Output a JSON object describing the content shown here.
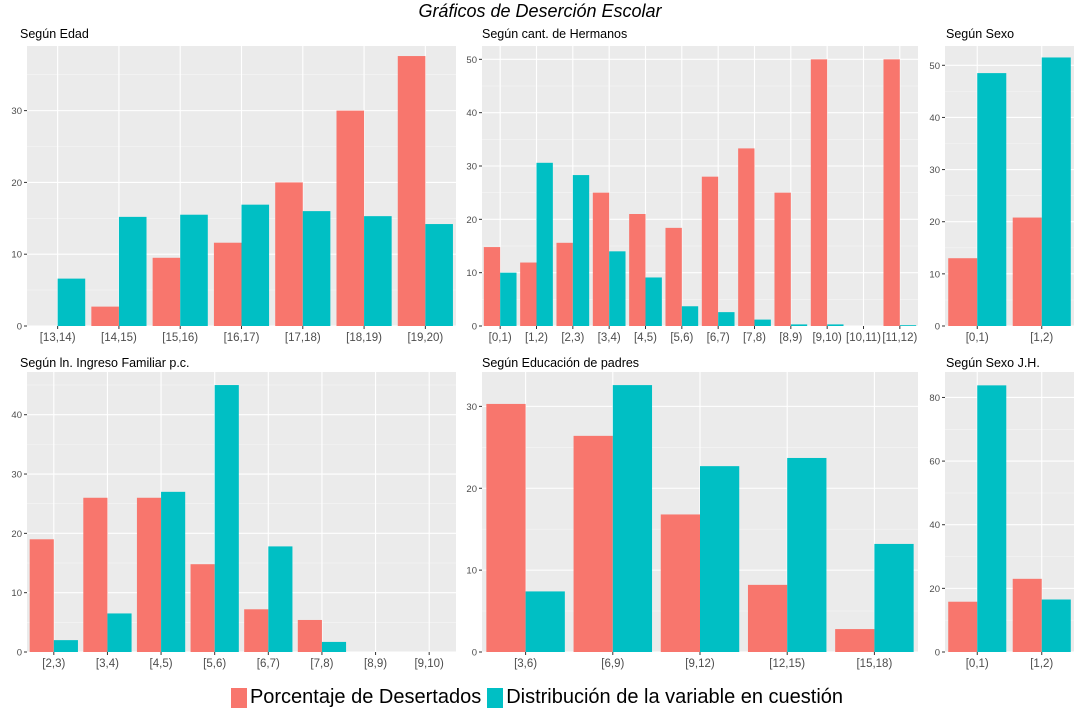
{
  "title": "Gráficos de Deserción Escolar",
  "colors": {
    "desertados": "#F8766D",
    "distribucion": "#00BFC4"
  },
  "legend": [
    {
      "label": "Porcentaje de Desertados",
      "color": "#F8766D"
    },
    {
      "label": "Distribución de la variable en cuestión",
      "color": "#00BFC4"
    }
  ],
  "chart_data": [
    {
      "type": "bar",
      "title": "Según  Edad",
      "categories": [
        "[13,14)",
        "[14,15)",
        "[15,16)",
        "[16,17)",
        "[17,18)",
        "[18,19)",
        "[19,20)"
      ],
      "series": [
        {
          "name": "Porcentaje de Desertados",
          "values": [
            0,
            2.7,
            9.5,
            11.6,
            20.0,
            30.0,
            37.6
          ]
        },
        {
          "name": "Distribución de la variable en cuestión",
          "values": [
            6.6,
            15.2,
            15.5,
            16.9,
            16.0,
            15.3,
            14.2
          ]
        }
      ],
      "ylim": [
        0,
        39
      ],
      "yticks": [
        0,
        10,
        20,
        30
      ]
    },
    {
      "type": "bar",
      "title": "Según  cant. de Hermanos",
      "categories": [
        "[0,1)",
        "[1,2)",
        "[2,3)",
        "[3,4)",
        "[4,5)",
        "[5,6)",
        "[6,7)",
        "[7,8)",
        "[8,9)",
        "[9,10)",
        "[10,11)",
        "[11,12)"
      ],
      "series": [
        {
          "name": "Porcentaje de Desertados",
          "values": [
            14.8,
            11.9,
            15.6,
            25.0,
            21.0,
            18.4,
            28.0,
            33.3,
            25.0,
            50.0,
            0,
            50.0
          ]
        },
        {
          "name": "Distribución de la variable en cuestión",
          "values": [
            10.0,
            30.6,
            28.3,
            14.0,
            9.1,
            3.7,
            2.6,
            1.2,
            0.3,
            0.3,
            0,
            0.15
          ]
        }
      ],
      "ylim": [
        0,
        52.5
      ],
      "yticks": [
        0,
        10,
        20,
        30,
        40,
        50
      ]
    },
    {
      "type": "bar",
      "title": "Según  Sexo",
      "categories": [
        "[0,1)",
        "[1,2)"
      ],
      "series": [
        {
          "name": "Porcentaje de Desertados",
          "values": [
            13.0,
            20.8
          ]
        },
        {
          "name": "Distribución de la variable en cuestión",
          "values": [
            48.5,
            51.5
          ]
        }
      ],
      "ylim": [
        0,
        53.7
      ],
      "yticks": [
        0,
        10,
        20,
        30,
        40,
        50
      ]
    },
    {
      "type": "bar",
      "title": "Según  ln. Ingreso Familiar p.c.",
      "categories": [
        "[2,3)",
        "[3,4)",
        "[4,5)",
        "[5,6)",
        "[6,7)",
        "[7,8)",
        "[8,9)",
        "[9,10)"
      ],
      "series": [
        {
          "name": "Porcentaje de Desertados",
          "values": [
            19.0,
            26.0,
            26.0,
            14.8,
            7.2,
            5.4,
            0,
            0
          ]
        },
        {
          "name": "Distribución de la variable en cuestión",
          "values": [
            2.0,
            6.5,
            27.0,
            45.0,
            17.8,
            1.7,
            0,
            0
          ]
        }
      ],
      "ylim": [
        0,
        47.2
      ],
      "yticks": [
        0,
        10,
        20,
        30,
        40
      ]
    },
    {
      "type": "bar",
      "title": "Según  Educación de padres",
      "categories": [
        "[3,6)",
        "[6,9)",
        "[9,12)",
        "[12,15)",
        "[15,18)"
      ],
      "series": [
        {
          "name": "Porcentaje de Desertados",
          "values": [
            30.3,
            26.4,
            16.8,
            8.2,
            2.8
          ]
        },
        {
          "name": "Distribución de la variable en cuestión",
          "values": [
            7.4,
            32.6,
            22.7,
            23.7,
            13.2
          ]
        }
      ],
      "ylim": [
        0,
        34.2
      ],
      "yticks": [
        0,
        10,
        20,
        30
      ]
    },
    {
      "type": "bar",
      "title": "Según  Sexo J.H.",
      "categories": [
        "[0,1)",
        "[1,2)"
      ],
      "series": [
        {
          "name": "Porcentaje de Desertados",
          "values": [
            15.8,
            23.0
          ]
        },
        {
          "name": "Distribución de la variable en cuestión",
          "values": [
            83.8,
            16.5
          ]
        }
      ],
      "ylim": [
        0,
        88
      ],
      "yticks": [
        0,
        20,
        40,
        60,
        80
      ]
    }
  ]
}
